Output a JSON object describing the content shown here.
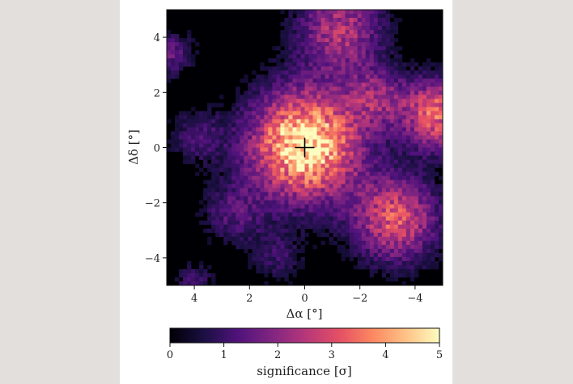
{
  "chart_data": {
    "type": "heatmap",
    "title": "",
    "xlabel": "Δα [°]",
    "ylabel": "Δδ [°]",
    "xlim": [
      5,
      -5
    ],
    "ylim": [
      -5,
      5
    ],
    "x_ticks": [
      4,
      2,
      0,
      -2,
      -4
    ],
    "y_ticks": [
      4,
      2,
      0,
      -2,
      -4
    ],
    "x_tick_labels": [
      "4",
      "2",
      "0",
      "−2",
      "−4"
    ],
    "y_tick_labels": [
      "4",
      "2",
      "0",
      "−2",
      "−4"
    ],
    "marker": {
      "symbol": "+",
      "x": 0,
      "y": 0
    },
    "colorbar": {
      "label": "significance [σ]",
      "ticks": [
        0,
        1,
        2,
        3,
        4,
        5
      ],
      "tick_labels": [
        "0",
        "1",
        "2",
        "3",
        "4",
        "5"
      ],
      "range": [
        0,
        5
      ],
      "colormap": "magma",
      "orientation": "horizontal"
    },
    "grid": false,
    "hotspots": [
      {
        "x": 0.0,
        "y": 0.1,
        "peak_sigma": 5.0,
        "spread_deg": 1.4
      },
      {
        "x": -3.3,
        "y": -2.6,
        "peak_sigma": 3.0,
        "spread_deg": 1.1
      },
      {
        "x": -4.8,
        "y": 1.2,
        "peak_sigma": 3.3,
        "spread_deg": 0.9
      },
      {
        "x": -1.3,
        "y": 4.3,
        "peak_sigma": 2.4,
        "spread_deg": 1.1
      },
      {
        "x": -2.6,
        "y": 1.8,
        "peak_sigma": 1.7,
        "spread_deg": 0.8
      },
      {
        "x": 4.9,
        "y": 3.4,
        "peak_sigma": 1.5,
        "spread_deg": 0.6
      },
      {
        "x": 2.6,
        "y": -2.4,
        "peak_sigma": 1.2,
        "spread_deg": 0.8
      },
      {
        "x": 3.9,
        "y": 0.4,
        "peak_sigma": 1.1,
        "spread_deg": 0.7
      },
      {
        "x": 4.0,
        "y": -4.9,
        "peak_sigma": 1.1,
        "spread_deg": 0.5
      },
      {
        "x": 1.0,
        "y": -4.0,
        "peak_sigma": 0.9,
        "spread_deg": 0.7
      }
    ]
  }
}
